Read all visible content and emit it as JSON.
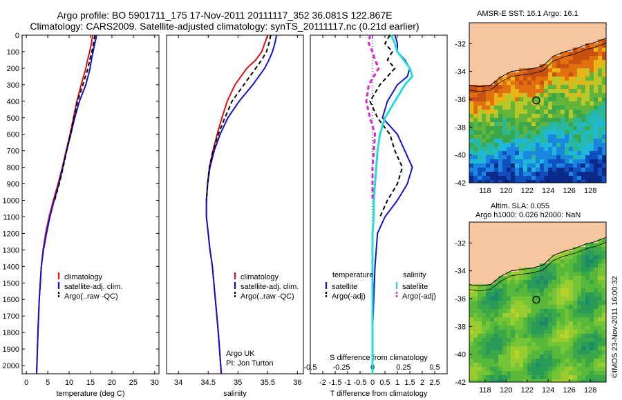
{
  "header": {
    "line1": "Argo profile: BO 5901711_175 17-Nov-2011 20111117_352 36.081S 122.867E",
    "line2": "Climatology: CARS2009. Satellite-adjusted climatology: synTS_20111117.nc (0.21d earlier)"
  },
  "side": {
    "sst_title": "AMSR-E SST: 16.1  Argo: 16.1",
    "sla_title1": "Altim. SLA: 0.055",
    "sla_title2": "Argo h1000: 0.026 h2000: NaN",
    "stamp": "©IMOS 23-Nov-2011 16:00:32"
  },
  "notes": {
    "argo_uk": "Argo UK",
    "pi": "PI: Jon Turton"
  },
  "colors": {
    "climatology": "#dd1111",
    "satellite": "#1111cc",
    "argo": "#000000",
    "sat_sal": "#22dddd",
    "argo_sal": "#dd22dd",
    "land": "#f6c6a0"
  },
  "chart_data": [
    {
      "type": "line",
      "xlabel": "temperature (deg C)",
      "xlim": [
        -1,
        31
      ],
      "ylim": [
        2050,
        0
      ],
      "xticks": [
        0,
        5,
        10,
        15,
        20,
        25,
        30
      ],
      "yticks": [
        0,
        100,
        200,
        300,
        400,
        500,
        600,
        700,
        800,
        900,
        1000,
        1100,
        1200,
        1300,
        1400,
        1500,
        1600,
        1700,
        1800,
        1900,
        2000
      ],
      "legend": [
        "climatology",
        "satellite-adj. clim.",
        "Argo(..raw -QC)"
      ],
      "legend_position": "lower-center",
      "depth": [
        0,
        50,
        100,
        150,
        200,
        300,
        400,
        500,
        600,
        700,
        800,
        900,
        1000,
        1100,
        1200,
        1300,
        1400,
        1600,
        1800,
        2050
      ],
      "series": [
        {
          "name": "climatology",
          "values": [
            15.5,
            15.2,
            14.8,
            14.3,
            13.9,
            12.8,
            11.8,
            11.0,
            10.2,
            9.3,
            8.4,
            7.4,
            6.3,
            5.3,
            4.5,
            3.9,
            3.5,
            3.0,
            2.7,
            2.4
          ]
        },
        {
          "name": "satellite-adj. clim.",
          "values": [
            16.4,
            16.0,
            15.6,
            15.2,
            14.9,
            13.9,
            12.4,
            11.3,
            10.4,
            9.4,
            8.5,
            7.6,
            6.5,
            5.5,
            4.7,
            4.0,
            3.5,
            3.0,
            2.7,
            2.4
          ]
        },
        {
          "name": "Argo(..raw -QC)",
          "values": [
            16.0,
            15.7,
            15.3,
            14.8,
            14.4,
            13.2,
            12.0,
            11.1,
            10.3,
            9.4,
            8.6,
            7.7,
            6.6,
            null,
            null,
            null,
            null,
            null,
            null,
            null
          ]
        }
      ]
    },
    {
      "type": "line",
      "xlabel": "salinity",
      "xlim": [
        33.8,
        36.1
      ],
      "ylim": [
        2050,
        0
      ],
      "xticks": [
        34,
        34.5,
        35,
        35.5,
        36
      ],
      "legend": [
        "climatology",
        "satellite-adj. clim.",
        "Argo(..raw -QC)"
      ],
      "legend_position": "lower-center",
      "depth": [
        0,
        50,
        100,
        150,
        200,
        300,
        400,
        500,
        600,
        700,
        800,
        900,
        1000,
        1100,
        1200,
        1300,
        1400,
        1600,
        1800,
        2050
      ],
      "series": [
        {
          "name": "climatology",
          "values": [
            35.5,
            35.45,
            35.4,
            35.3,
            35.15,
            34.95,
            34.82,
            34.73,
            34.65,
            34.58,
            34.52,
            34.49,
            34.47,
            34.47,
            34.5,
            34.53,
            34.57,
            34.62,
            34.67,
            34.72
          ]
        },
        {
          "name": "satellite-adj. clim.",
          "values": [
            35.65,
            35.62,
            35.58,
            35.52,
            35.45,
            35.25,
            35.02,
            34.83,
            34.7,
            34.6,
            34.53,
            34.49,
            34.47,
            34.47,
            34.5,
            34.53,
            34.57,
            34.62,
            34.67,
            34.72
          ]
        },
        {
          "name": "Argo(..raw -QC)",
          "values": [
            35.55,
            35.52,
            35.48,
            35.4,
            35.3,
            35.1,
            34.9,
            34.78,
            34.67,
            34.58,
            34.52,
            34.49,
            34.47,
            null,
            null,
            null,
            null,
            null,
            null,
            null
          ]
        }
      ]
    },
    {
      "type": "line",
      "xlabel": "T difference from climatology",
      "xlabel_top": "S difference from climatology",
      "xlim": [
        -2.5,
        3
      ],
      "ylim": [
        2050,
        0
      ],
      "xticks": [
        -2,
        -1.5,
        -1,
        -0.5,
        0,
        0.5,
        1,
        1.5,
        2,
        2.5
      ],
      "xtick_labels": [
        "-2",
        "-1.5",
        "-1",
        "-0.5",
        "0",
        "0.5",
        "1",
        "1.5",
        "2",
        "2.5"
      ],
      "top_ticks": [
        -0.5,
        -0.25,
        0,
        0.25,
        0.5
      ],
      "top_tick_labels": [
        "-0.5",
        "-0.25",
        "0",
        "0.25",
        "0.5"
      ],
      "legend_heading_t": "temperature",
      "legend_heading_s": "salinity",
      "legend_t": [
        "satellite",
        "Argo(-adj)"
      ],
      "legend_s": [
        "satellite",
        "Argo(-adj)"
      ],
      "legend_position": "lower-center",
      "depth": [
        0,
        50,
        100,
        150,
        200,
        250,
        300,
        400,
        500,
        600,
        700,
        800,
        900,
        1000,
        1100,
        1200,
        1400,
        1600,
        1800,
        2050
      ],
      "series": [
        {
          "name": "temperature satellite",
          "values": [
            0.9,
            1.0,
            1.0,
            1.3,
            1.5,
            1.4,
            1.0,
            0.6,
            0.4,
            1.0,
            1.3,
            1.6,
            1.4,
            1.0,
            0.5,
            0.2,
            0.1,
            0.05,
            0.0,
            0.0
          ]
        },
        {
          "name": "temperature Argo(-adj)",
          "values": [
            0.7,
            0.5,
            0.8,
            0.6,
            0.9,
            0.6,
            0.3,
            -0.1,
            0.2,
            0.7,
            0.9,
            1.2,
            1.0,
            0.6,
            0.3,
            null,
            null,
            null,
            null,
            null
          ]
        },
        {
          "name": "salinity satellite",
          "values": [
            0.15,
            0.18,
            0.2,
            0.25,
            0.3,
            0.32,
            0.26,
            0.18,
            0.1,
            0.06,
            0.04,
            0.03,
            0.02,
            0.01,
            0.01,
            0.0,
            0.0,
            0.0,
            0.0,
            0.0
          ]
        },
        {
          "name": "salinity Argo(-adj)",
          "values": [
            -0.02,
            -0.03,
            0.0,
            0.02,
            0.05,
            0.01,
            -0.03,
            -0.05,
            -0.02,
            0.02,
            0.01,
            0.0,
            0.0,
            0.0,
            null,
            null,
            null,
            null,
            null,
            null
          ]
        }
      ]
    }
  ],
  "maps": {
    "lon_ticks": [
      118,
      120,
      122,
      124,
      126,
      128
    ],
    "lat_ticks": [
      -32,
      -34,
      -36,
      -38,
      -40,
      -42
    ],
    "xlim": [
      116.5,
      129.5
    ],
    "ylim": [
      -42,
      -30.5
    ],
    "argo_lon": 122.867,
    "argo_lat": -36.081,
    "coast": [
      [
        116.5,
        -35.0
      ],
      [
        117.5,
        -35.1
      ],
      [
        118.5,
        -35.0
      ],
      [
        119.5,
        -34.4
      ],
      [
        120.5,
        -34.0
      ],
      [
        121.5,
        -33.9
      ],
      [
        122.5,
        -33.8
      ],
      [
        123.5,
        -33.6
      ],
      [
        124.5,
        -32.9
      ],
      [
        125.5,
        -32.6
      ],
      [
        126.5,
        -32.4
      ],
      [
        127.5,
        -32.1
      ],
      [
        128.5,
        -31.9
      ],
      [
        129.5,
        -31.6
      ]
    ]
  }
}
